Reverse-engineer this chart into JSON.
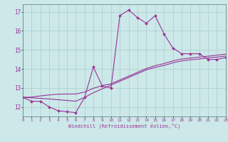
{
  "xlabel": "Windchill (Refroidissement éolien,°C)",
  "bg_color": "#cce8e8",
  "line_color": "#993399",
  "grid_color": "#aacccc",
  "x_min": 0,
  "x_max": 23,
  "y_min": 11.5,
  "y_max": 17.4,
  "yticks": [
    12,
    13,
    14,
    15,
    16,
    17
  ],
  "xticks": [
    0,
    1,
    2,
    3,
    4,
    5,
    6,
    7,
    8,
    9,
    10,
    11,
    12,
    13,
    14,
    15,
    16,
    17,
    18,
    19,
    20,
    21,
    22,
    23
  ],
  "line1_x": [
    0,
    1,
    2,
    3,
    4,
    5,
    6,
    7,
    8,
    9,
    10,
    11,
    12,
    13,
    14,
    15,
    16,
    17,
    18,
    19,
    20,
    21,
    22,
    23
  ],
  "line1_y": [
    12.5,
    12.3,
    12.3,
    12.0,
    11.8,
    11.75,
    11.7,
    12.5,
    14.1,
    13.1,
    13.0,
    16.8,
    17.1,
    16.7,
    16.4,
    16.8,
    15.85,
    15.1,
    14.8,
    14.8,
    14.8,
    14.5,
    14.5,
    14.6
  ],
  "line2_x": [
    0,
    1,
    2,
    3,
    4,
    5,
    6,
    7,
    8,
    9,
    10,
    11,
    12,
    13,
    14,
    15,
    16,
    17,
    18,
    19,
    20,
    21,
    22,
    23
  ],
  "line2_y": [
    12.5,
    12.48,
    12.45,
    12.42,
    12.38,
    12.34,
    12.3,
    12.5,
    12.75,
    12.95,
    13.15,
    13.35,
    13.55,
    13.75,
    13.95,
    14.08,
    14.18,
    14.32,
    14.42,
    14.48,
    14.52,
    14.58,
    14.62,
    14.68
  ],
  "line3_x": [
    0,
    1,
    2,
    3,
    4,
    5,
    6,
    7,
    8,
    9,
    10,
    11,
    12,
    13,
    14,
    15,
    16,
    17,
    18,
    19,
    20,
    21,
    22,
    23
  ],
  "line3_y": [
    12.5,
    12.52,
    12.58,
    12.63,
    12.67,
    12.68,
    12.68,
    12.78,
    12.98,
    13.12,
    13.22,
    13.42,
    13.62,
    13.82,
    14.02,
    14.17,
    14.28,
    14.42,
    14.52,
    14.57,
    14.62,
    14.67,
    14.72,
    14.78
  ]
}
